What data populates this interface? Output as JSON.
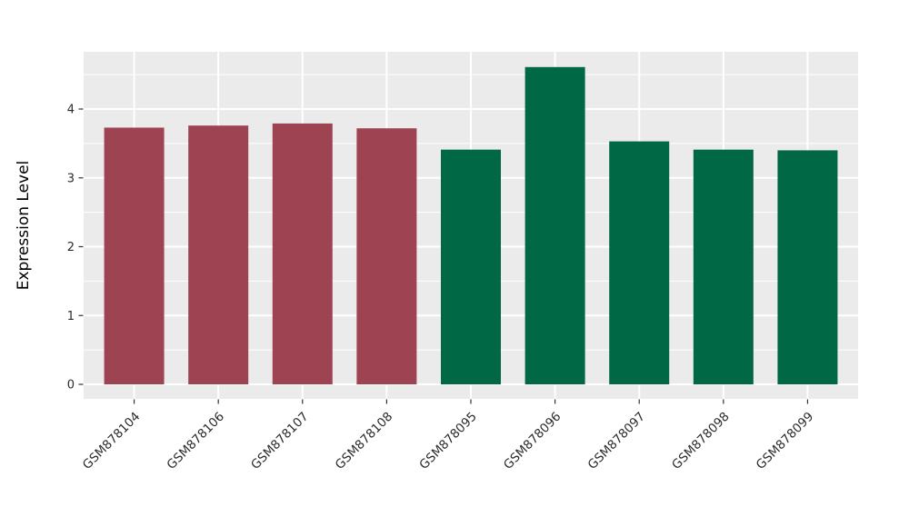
{
  "chart_data": {
    "type": "bar",
    "title": "",
    "xlabel": "",
    "ylabel": "Expression Level",
    "categories": [
      "GSM878104",
      "GSM878106",
      "GSM878107",
      "GSM878108",
      "GSM878095",
      "GSM878096",
      "GSM878097",
      "GSM878098",
      "GSM878099"
    ],
    "values": [
      3.73,
      3.76,
      3.79,
      3.72,
      3.41,
      4.61,
      3.53,
      3.41,
      3.4
    ],
    "bar_colors": [
      "#9E4352",
      "#9E4352",
      "#9E4352",
      "#9E4352",
      "#006845",
      "#006845",
      "#006845",
      "#006845",
      "#006845"
    ],
    "group_colors": {
      "first_group_maroon": "#9E4352",
      "second_group_green": "#006845"
    },
    "y_ticks": [
      0,
      1,
      2,
      3,
      4
    ],
    "y_minor_ticks": [
      0.5,
      1.5,
      2.5,
      3.5,
      4.5
    ],
    "ylim": [
      0,
      4.83
    ],
    "x_tick_angle_deg": 45,
    "grid": "horizontal major+minor, vertical major at category centers",
    "legend_position": "none",
    "colors": {
      "panel_bg": "#EBEBEB",
      "grid": "#FFFFFF",
      "tick_mark": "#333333",
      "tick_label": "#2B2B2B",
      "axis_title": "#000000",
      "page_bg": "#FFFFFF"
    }
  }
}
